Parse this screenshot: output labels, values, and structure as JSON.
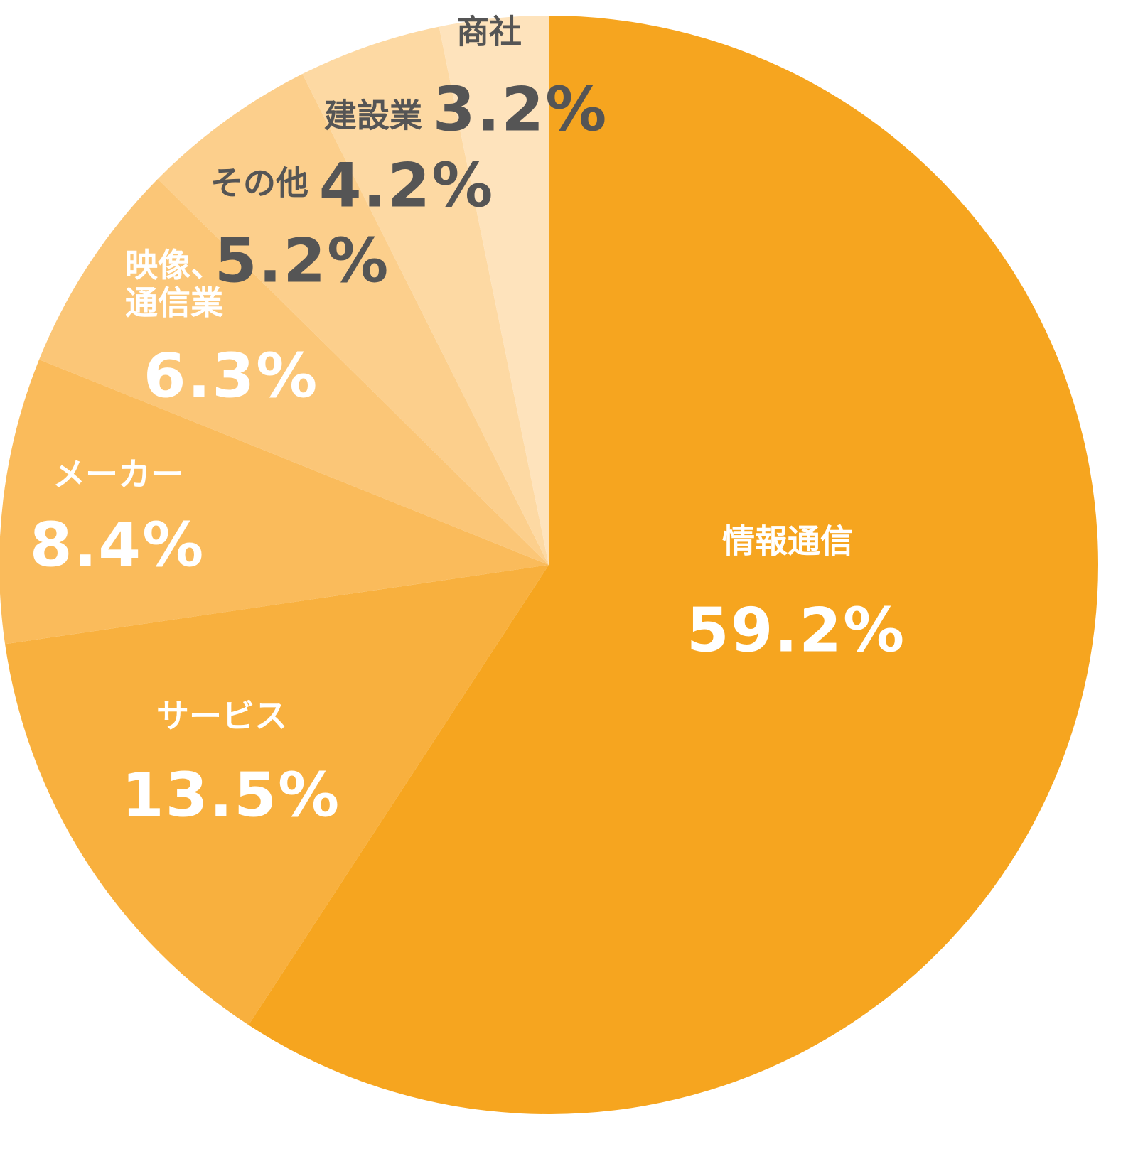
{
  "chart_data": {
    "type": "pie",
    "categories": [
      "情報通信",
      "サービス",
      "メーカー",
      "映像、\n通信業",
      "その他",
      "建設業",
      "商社"
    ],
    "values": [
      59.2,
      13.5,
      8.4,
      6.3,
      5.2,
      4.2,
      3.2
    ],
    "value_labels": [
      "59.2%",
      "13.5%",
      "8.4%",
      "6.3%",
      "5.2%",
      "4.2%",
      "3.2%"
    ],
    "colors": [
      "#f6a51f",
      "#f8b03e",
      "#fabb5b",
      "#fbc677",
      "#fccf8c",
      "#fdd9a3",
      "#fee3bc"
    ]
  }
}
